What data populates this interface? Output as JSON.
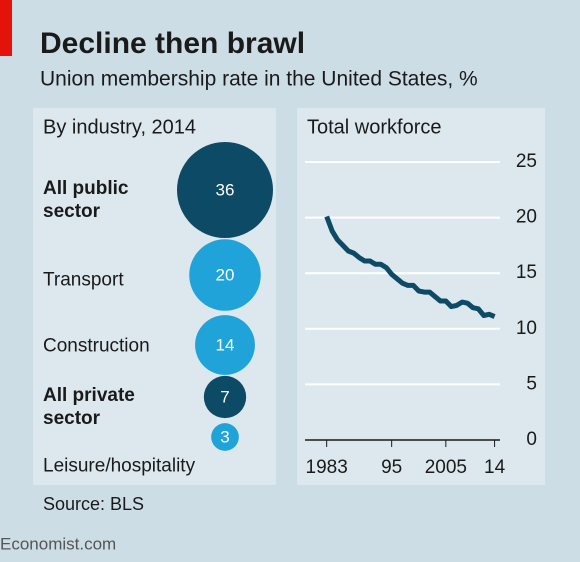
{
  "header": {
    "title": "Decline then brawl",
    "subtitle": "Union membership rate in the United States, %"
  },
  "chart_data": [
    {
      "type": "bubble",
      "title": "By industry, 2014",
      "categories": [
        "All public sector",
        "Transport",
        "Construction",
        "All private sector",
        "Leisure/hospitality"
      ],
      "values": [
        36,
        20,
        14,
        7,
        3
      ],
      "colors": [
        "#0d4a66",
        "#1fa3d9",
        "#1fa3d9",
        "#0d4a66",
        "#1fa3d9"
      ],
      "bold": [
        true,
        false,
        false,
        true,
        false
      ]
    },
    {
      "type": "line",
      "title": "Total workforce",
      "x": [
        1983,
        1984,
        1985,
        1986,
        1987,
        1988,
        1989,
        1990,
        1991,
        1992,
        1993,
        1994,
        1995,
        1996,
        1997,
        1998,
        1999,
        2000,
        2001,
        2002,
        2003,
        2004,
        2005,
        2006,
        2007,
        2008,
        2009,
        2010,
        2011,
        2012,
        2013,
        2014
      ],
      "series": [
        {
          "color": "#0d4a66",
          "values": [
            20.1,
            18.8,
            18.0,
            17.5,
            17.0,
            16.8,
            16.4,
            16.1,
            16.1,
            15.8,
            15.8,
            15.5,
            14.9,
            14.5,
            14.1,
            13.9,
            13.9,
            13.4,
            13.3,
            13.3,
            12.9,
            12.5,
            12.5,
            12.0,
            12.1,
            12.4,
            12.3,
            11.9,
            11.8,
            11.2,
            11.3,
            11.1
          ]
        }
      ],
      "xlim": [
        1979,
        2015
      ],
      "xticks": [
        1983,
        {
          "value": 1995,
          "label": "95"
        },
        2005,
        {
          "value": 2014,
          "label": "14"
        }
      ],
      "ylim": [
        0,
        25
      ],
      "yticks": [
        0,
        5,
        10,
        15,
        20,
        25
      ],
      "grid": true
    }
  ],
  "source": "Source: BLS",
  "footer": "Economist.com"
}
